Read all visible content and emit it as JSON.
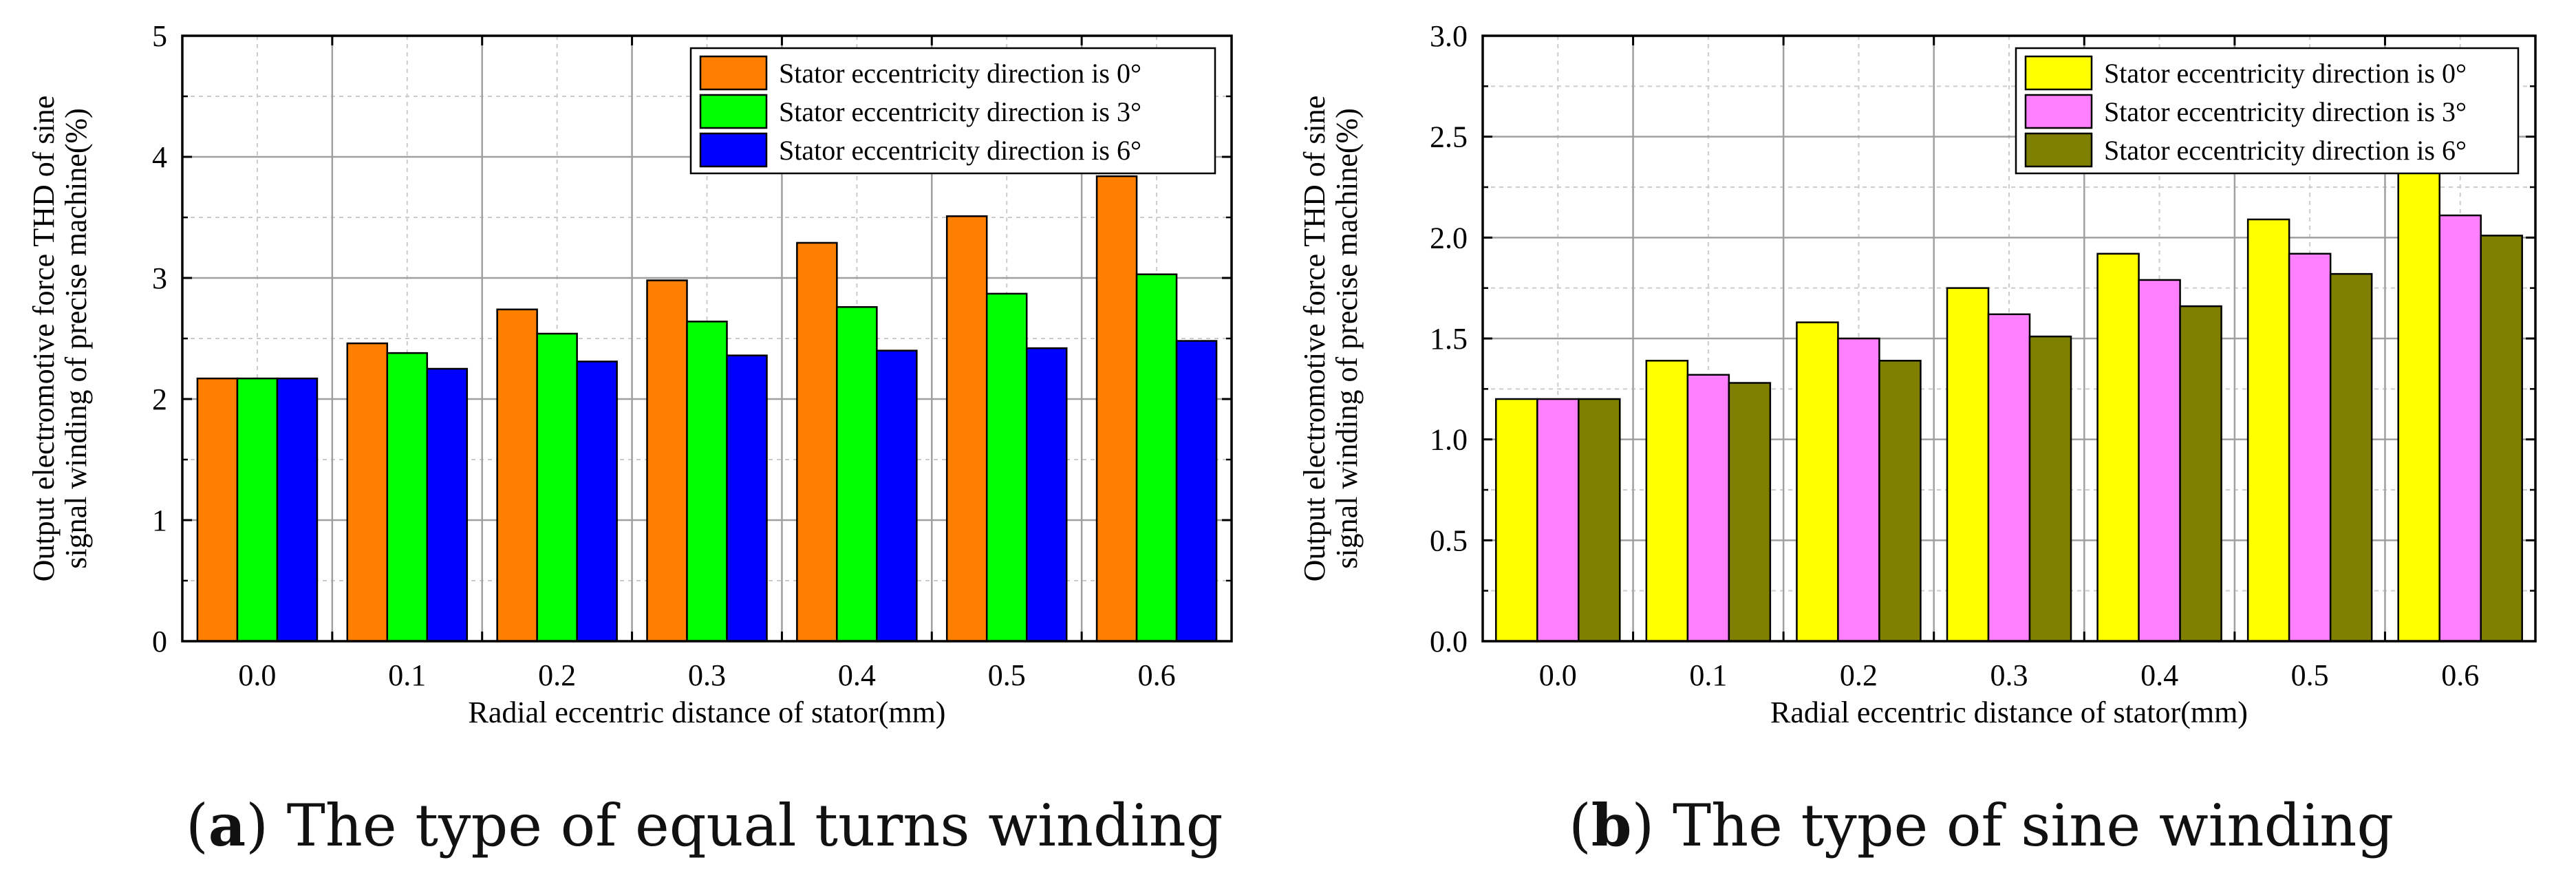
{
  "captions": [
    {
      "letter": "a",
      "text": " The type of equal turns winding"
    },
    {
      "letter": "b",
      "text": " The type of sine winding"
    }
  ],
  "chart_data": [
    {
      "type": "bar",
      "title": "",
      "xlabel": "Radial eccentric distance of stator(mm)",
      "ylabel": [
        "Output electromotive force THD of sine",
        "signal winding of precise machine(%)"
      ],
      "categories": [
        "0.0",
        "0.1",
        "0.2",
        "0.3",
        "0.4",
        "0.5",
        "0.6"
      ],
      "ylim": [
        0,
        5
      ],
      "yticks": [
        "0",
        "1",
        "2",
        "3",
        "4",
        "5"
      ],
      "grid": true,
      "legend_position": "top-right",
      "series": [
        {
          "name": "Stator eccentricity direction is 0°",
          "color": "#ff7f00",
          "values": [
            2.17,
            2.46,
            2.74,
            2.98,
            3.29,
            3.51,
            3.84
          ]
        },
        {
          "name": "Stator eccentricity direction is 3°",
          "color": "#00ff00",
          "values": [
            2.17,
            2.38,
            2.54,
            2.64,
            2.76,
            2.87,
            3.03
          ]
        },
        {
          "name": "Stator eccentricity direction is 6°",
          "color": "#0000ff",
          "values": [
            2.17,
            2.25,
            2.31,
            2.36,
            2.4,
            2.42,
            2.48
          ]
        }
      ]
    },
    {
      "type": "bar",
      "title": "",
      "xlabel": "Radial eccentric distance of stator(mm)",
      "ylabel": [
        "Output electromotive force THD of sine",
        "signal winding of precise machine(%)"
      ],
      "categories": [
        "0.0",
        "0.1",
        "0.2",
        "0.3",
        "0.4",
        "0.5",
        "0.6"
      ],
      "ylim": [
        0,
        3
      ],
      "yticks": [
        "0.0",
        "0.5",
        "1.0",
        "1.5",
        "2.0",
        "2.5",
        "3.0"
      ],
      "grid": true,
      "legend_position": "top-right",
      "series": [
        {
          "name": "Stator eccentricity direction is 0°",
          "color": "#ffff00",
          "values": [
            1.2,
            1.39,
            1.58,
            1.75,
            1.92,
            2.09,
            2.32
          ]
        },
        {
          "name": "Stator eccentricity direction is 3°",
          "color": "#ff80ff",
          "values": [
            1.2,
            1.32,
            1.5,
            1.62,
            1.79,
            1.92,
            2.11
          ]
        },
        {
          "name": "Stator eccentricity direction is 6°",
          "color": "#808000",
          "values": [
            1.2,
            1.28,
            1.39,
            1.51,
            1.66,
            1.82,
            2.01
          ]
        }
      ]
    }
  ]
}
